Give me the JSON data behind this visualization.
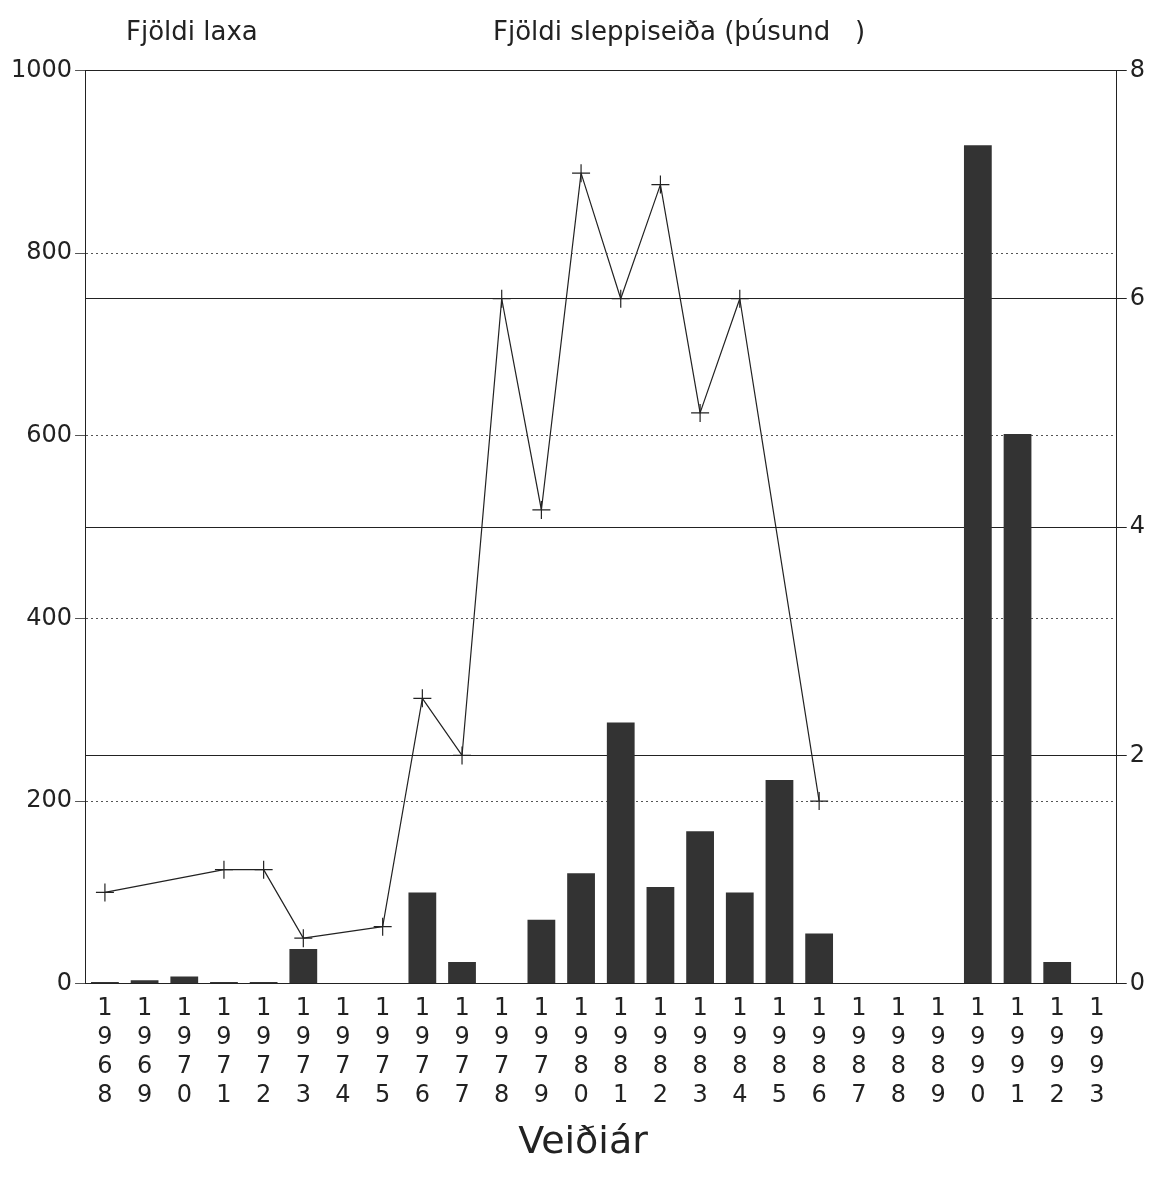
{
  "chart_data": {
    "type": "bar",
    "ylabel": "Fjöldi laxa",
    "y2label": "Fjöldi sleppiseiða (þúsund   )",
    "xlabel": "Veiðiár",
    "categories": [
      "1968",
      "1969",
      "1970",
      "1971",
      "1972",
      "1973",
      "1974",
      "1975",
      "1976",
      "1977",
      "1978",
      "1979",
      "1980",
      "1981",
      "1982",
      "1983",
      "1984",
      "1985",
      "1986",
      "1987",
      "1988",
      "1989",
      "1990",
      "1991",
      "1992",
      "1993"
    ],
    "series": [
      {
        "color": "#333333",
        "values": [
          2,
          4,
          8,
          2,
          2,
          38,
          0,
          0,
          100,
          24,
          0,
          70,
          121,
          286,
          106,
          167,
          100,
          223,
          55,
          0,
          0,
          0,
          918,
          602,
          24,
          1
        ]
      },
      {
        "type": "line",
        "axis": "y2",
        "color": "#222222",
        "values": [
          0.8,
          null,
          null,
          1.0,
          1.0,
          0.4,
          null,
          0.5,
          2.5,
          2.0,
          6.0,
          4.15,
          7.1,
          6.0,
          7.0,
          5.0,
          6.0,
          null,
          1.6,
          null,
          null,
          null,
          null,
          null,
          null,
          null
        ]
      }
    ],
    "ylim": [
      0,
      1000
    ],
    "yticks": [
      0,
      200,
      400,
      600,
      800,
      1000
    ],
    "y2lim": [
      0,
      8
    ],
    "y2ticks": [
      0,
      2,
      4,
      6,
      8
    ],
    "grid": "y",
    "legend": false,
    "marker": "cross",
    "line_style": "solid"
  }
}
